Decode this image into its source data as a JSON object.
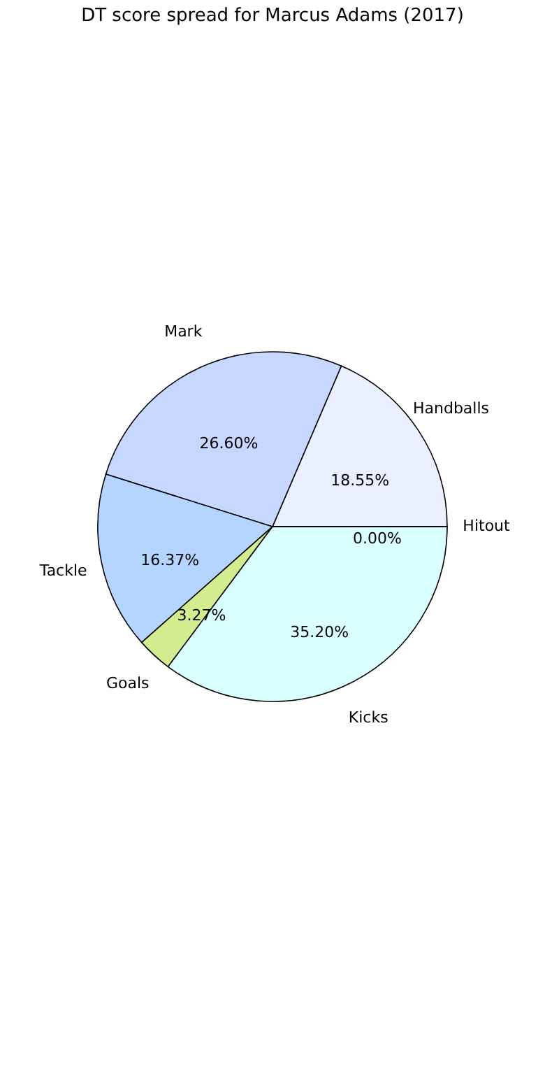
{
  "chart_data": {
    "type": "pie",
    "title": "DT score spread for Marcus Adams (2017)",
    "categories": [
      "Handballs",
      "Mark",
      "Tackle",
      "Goals",
      "Kicks",
      "Hitout"
    ],
    "values": [
      18.55,
      26.6,
      16.37,
      3.27,
      35.2,
      0.0
    ],
    "value_labels": [
      "18.55%",
      "26.60%",
      "16.37%",
      "3.27%",
      "35.20%",
      "0.00%"
    ],
    "colors": [
      "#eaf0ff",
      "#c6d8ff",
      "#b3d5ff",
      "#d1ed8f",
      "#d9ffff",
      "#e8e8e8"
    ],
    "legend": false
  }
}
